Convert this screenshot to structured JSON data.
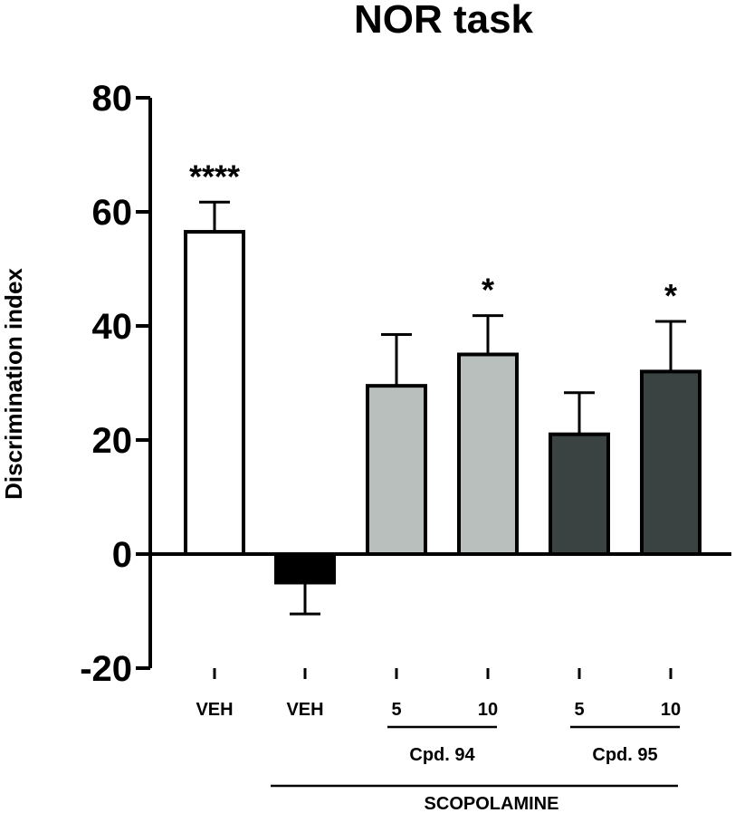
{
  "chart_data": {
    "type": "bar",
    "title": "NOR task",
    "ylabel": "Discrimination index",
    "xlabel": "",
    "ylim": [
      -20,
      80
    ],
    "yticks": [
      "-20",
      "0",
      "20",
      "40",
      "60",
      "80"
    ],
    "categories": [
      "VEH",
      "VEH",
      "5",
      "10",
      "5",
      "10"
    ],
    "values": [
      56.5,
      -5,
      29.5,
      35,
      21,
      32
    ],
    "errors": [
      5.2,
      5.5,
      9,
      6.8,
      7.3,
      8.8
    ],
    "significance": [
      "****",
      "",
      "",
      "*",
      "",
      "*"
    ],
    "bar_colors": [
      "#ffffff",
      "#000000",
      "#b8bfbd",
      "#b8bfbd",
      "#3b4342",
      "#3b4342"
    ],
    "groups": [
      {
        "label": "Cpd. 94",
        "from": 2,
        "to": 3
      },
      {
        "label": "Cpd. 95",
        "from": 4,
        "to": 5
      }
    ],
    "treatment": {
      "label": "SCOPOLAMINE",
      "from": 1,
      "to": 5
    }
  }
}
